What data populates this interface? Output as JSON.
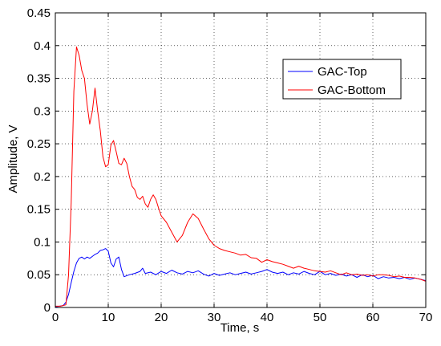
{
  "chart_data": {
    "type": "line",
    "title": "",
    "xlabel": "Time, s",
    "ylabel": "Amplitude, V",
    "xlim": [
      0,
      70
    ],
    "ylim": [
      0,
      0.45
    ],
    "xticks": [
      0,
      10,
      20,
      30,
      40,
      50,
      60,
      70
    ],
    "yticks": [
      0,
      0.05,
      0.1,
      0.15,
      0.2,
      0.25,
      0.3,
      0.35,
      0.4,
      0.45
    ],
    "xtick_labels": [
      "0",
      "10",
      "20",
      "30",
      "40",
      "50",
      "60",
      "70"
    ],
    "ytick_labels": [
      "0",
      "0.05",
      "0.1",
      "0.15",
      "0.2",
      "0.25",
      "0.3",
      "0.35",
      "0.4",
      "0.45"
    ],
    "grid": true,
    "grid_style": "dotted",
    "legend_position": "top-right",
    "series": [
      {
        "name": "GAC-Top",
        "color": "#0000ff",
        "x": [
          0,
          1.5,
          2,
          2.5,
          3,
          3.5,
          4,
          4.5,
          5,
          5.5,
          6,
          6.5,
          7,
          7.5,
          8,
          8.5,
          9,
          9.5,
          10,
          10.5,
          11,
          11.5,
          12,
          12.5,
          13,
          14,
          15,
          16,
          16.5,
          17,
          18,
          19,
          20,
          21,
          22,
          23,
          24,
          25,
          26,
          27,
          28,
          29,
          30,
          31,
          32,
          33,
          34,
          35,
          36,
          37,
          38,
          39,
          40,
          41,
          42,
          43,
          44,
          45,
          46,
          47,
          48,
          49,
          50,
          51,
          52,
          53,
          54,
          55,
          56,
          57,
          58,
          59,
          60,
          61,
          62,
          63,
          64,
          65,
          66,
          67,
          68,
          69,
          70
        ],
        "values": [
          0.001,
          0.003,
          0.008,
          0.02,
          0.038,
          0.055,
          0.068,
          0.075,
          0.077,
          0.074,
          0.077,
          0.075,
          0.078,
          0.081,
          0.083,
          0.087,
          0.088,
          0.09,
          0.086,
          0.068,
          0.062,
          0.074,
          0.077,
          0.058,
          0.047,
          0.05,
          0.052,
          0.055,
          0.06,
          0.052,
          0.054,
          0.05,
          0.055,
          0.052,
          0.057,
          0.053,
          0.051,
          0.055,
          0.053,
          0.056,
          0.051,
          0.048,
          0.052,
          0.049,
          0.051,
          0.053,
          0.05,
          0.052,
          0.054,
          0.051,
          0.053,
          0.055,
          0.058,
          0.054,
          0.052,
          0.054,
          0.05,
          0.053,
          0.051,
          0.055,
          0.052,
          0.05,
          0.055,
          0.05,
          0.052,
          0.049,
          0.051,
          0.048,
          0.05,
          0.046,
          0.05,
          0.047,
          0.049,
          0.044,
          0.047,
          0.045,
          0.046,
          0.044,
          0.046,
          0.043,
          0.045,
          0.043,
          0.041
        ]
      },
      {
        "name": "GAC-Bottom",
        "color": "#ff0000",
        "x": [
          0,
          1,
          2,
          2.5,
          3,
          3.5,
          4,
          4.5,
          5,
          5.5,
          6,
          6.5,
          7,
          7.5,
          8,
          8.5,
          9,
          9.5,
          10,
          10.5,
          11,
          11.5,
          12,
          12.5,
          13,
          13.5,
          14,
          14.5,
          15,
          15.5,
          16,
          16.5,
          17,
          17.5,
          18,
          18.5,
          19,
          19.5,
          20,
          21,
          22,
          23,
          24,
          25,
          26,
          27,
          28,
          29,
          30,
          31,
          32,
          33,
          34,
          35,
          36,
          37,
          38,
          39,
          40,
          41,
          42,
          43,
          44,
          45,
          46,
          47,
          48,
          49,
          50,
          51,
          52,
          53,
          54,
          55,
          56,
          57,
          58,
          59,
          60,
          61,
          62,
          63,
          64,
          65,
          66,
          67,
          68,
          69,
          70
        ],
        "values": [
          0.002,
          0.002,
          0.004,
          0.05,
          0.16,
          0.33,
          0.398,
          0.385,
          0.362,
          0.35,
          0.31,
          0.28,
          0.3,
          0.335,
          0.3,
          0.27,
          0.23,
          0.215,
          0.218,
          0.248,
          0.255,
          0.238,
          0.22,
          0.218,
          0.228,
          0.22,
          0.2,
          0.185,
          0.18,
          0.168,
          0.165,
          0.17,
          0.158,
          0.153,
          0.165,
          0.172,
          0.165,
          0.152,
          0.14,
          0.13,
          0.115,
          0.1,
          0.11,
          0.13,
          0.143,
          0.136,
          0.12,
          0.105,
          0.095,
          0.09,
          0.087,
          0.085,
          0.083,
          0.08,
          0.081,
          0.076,
          0.075,
          0.069,
          0.073,
          0.07,
          0.068,
          0.066,
          0.063,
          0.06,
          0.063,
          0.06,
          0.058,
          0.056,
          0.055,
          0.054,
          0.056,
          0.053,
          0.05,
          0.053,
          0.05,
          0.051,
          0.049,
          0.05,
          0.048,
          0.05,
          0.05,
          0.049,
          0.047,
          0.048,
          0.046,
          0.046,
          0.045,
          0.043,
          0.04
        ]
      }
    ]
  }
}
